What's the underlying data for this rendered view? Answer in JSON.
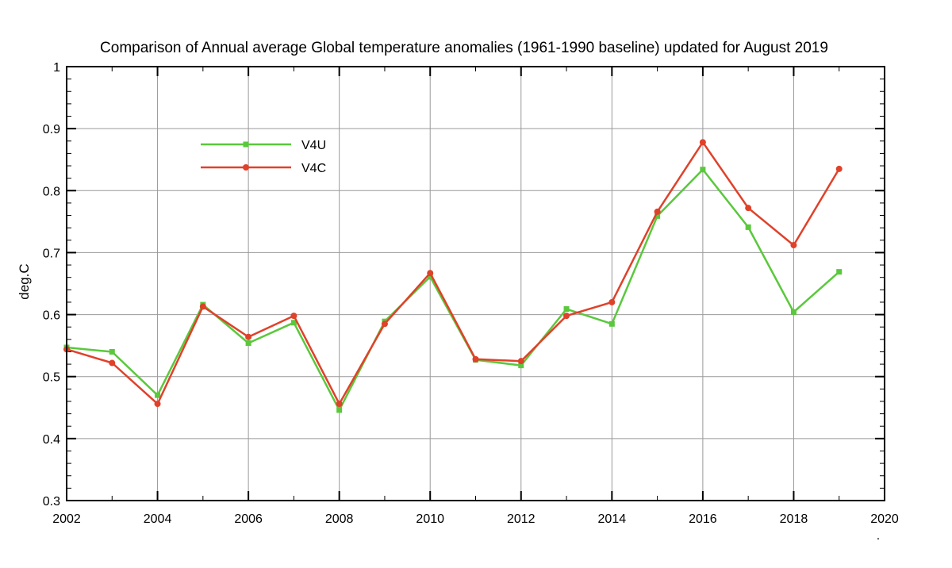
{
  "chart_data": {
    "type": "line",
    "title": "Comparison of Annual average Global temperature anomalies (1961-1990 baseline) updated for August 2019",
    "xlabel": "",
    "ylabel": "deg.C",
    "xlim": [
      2002,
      2020
    ],
    "ylim": [
      0.3,
      1.0
    ],
    "x_ticks": [
      "2002",
      "2004",
      "2006",
      "2008",
      "2010",
      "2012",
      "2014",
      "2016",
      "2018",
      "2020"
    ],
    "y_ticks": [
      "0.3",
      "0.4",
      "0.5",
      "0.6",
      "0.7",
      "0.8",
      "0.9",
      "1"
    ],
    "grid": true,
    "legend_position": "top-left",
    "x": [
      2002,
      2003,
      2004,
      2005,
      2006,
      2007,
      2008,
      2009,
      2010,
      2011,
      2012,
      2013,
      2014,
      2015,
      2016,
      2017,
      2018,
      2019
    ],
    "series": [
      {
        "name": "V4U",
        "color": "#5ac83c",
        "marker": "square",
        "values": [
          0.547,
          0.54,
          0.47,
          0.616,
          0.554,
          0.587,
          0.446,
          0.589,
          0.661,
          0.527,
          0.518,
          0.609,
          0.585,
          0.759,
          0.834,
          0.741,
          0.604,
          0.669
        ]
      },
      {
        "name": "V4C",
        "color": "#e0412a",
        "marker": "circle",
        "values": [
          0.544,
          0.522,
          0.456,
          0.613,
          0.564,
          0.598,
          0.456,
          0.585,
          0.667,
          0.528,
          0.525,
          0.598,
          0.62,
          0.766,
          0.878,
          0.772,
          0.712,
          0.835
        ]
      }
    ],
    "footnote": "."
  }
}
